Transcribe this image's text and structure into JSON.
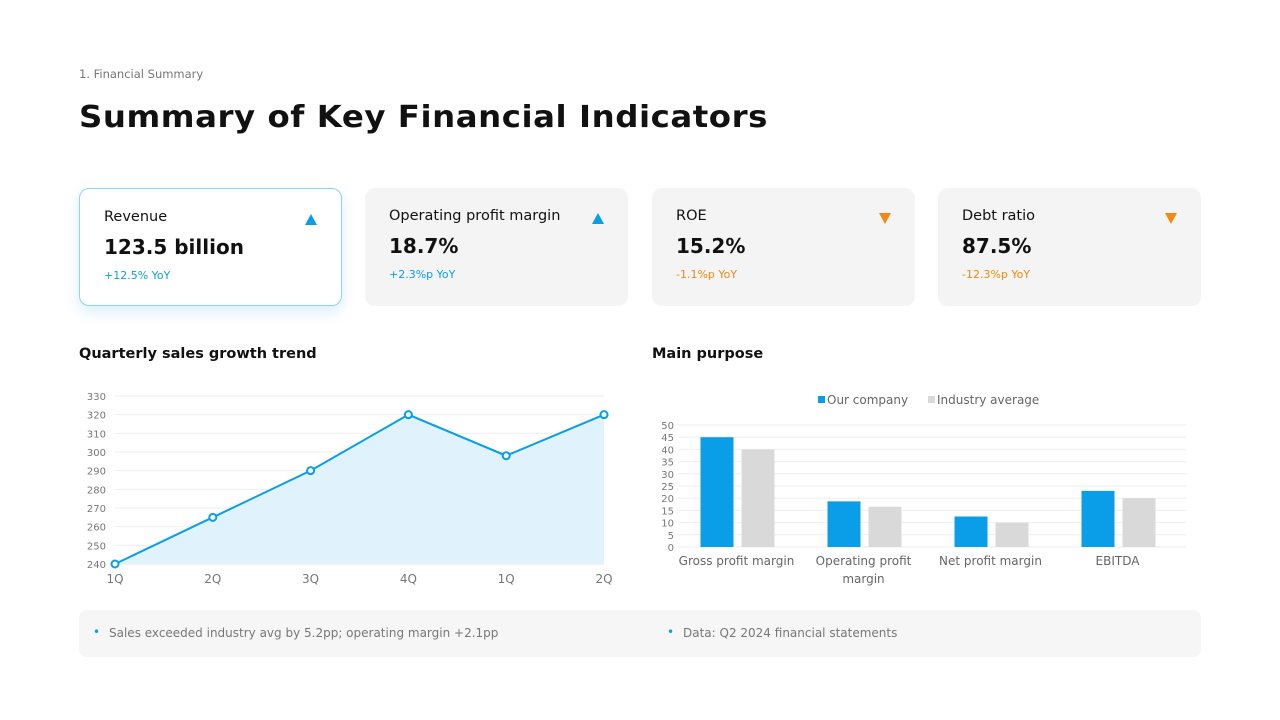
{
  "section": "1. Financial Summary",
  "title": "Summary of Key Financial Indicators",
  "colors": {
    "accent": "#0a9de8",
    "up": "#0a9de8",
    "down": "#f08a12",
    "industry": "#d9d9d9"
  },
  "cards": [
    {
      "label": "Revenue",
      "value": "123.5 billion",
      "yoy": "+12.5% YoY",
      "trend": "up"
    },
    {
      "label": "Operating profit margin",
      "value": "18.7%",
      "yoy": "+2.3%p YoY",
      "trend": "up"
    },
    {
      "label": "ROE",
      "value": "15.2%",
      "yoy": "-1.1%p YoY",
      "trend": "down"
    },
    {
      "label": "Debt ratio",
      "value": "87.5%",
      "yoy": "-12.3%p YoY",
      "trend": "down"
    }
  ],
  "chart_data": [
    {
      "type": "area",
      "title": "Quarterly sales growth trend",
      "categories": [
        "1Q",
        "2Q",
        "3Q",
        "4Q",
        "1Q",
        "2Q"
      ],
      "values": [
        240,
        265,
        290,
        320,
        298,
        320
      ],
      "ylim": [
        240,
        330
      ],
      "yticks": [
        240,
        250,
        260,
        270,
        280,
        290,
        300,
        310,
        320,
        330
      ],
      "grid": true
    },
    {
      "type": "bar",
      "title": "Main purpose",
      "categories": [
        "Gross profit margin",
        "Operating profit margin",
        "Net profit margin",
        "EBITDA"
      ],
      "series": [
        {
          "name": "Our company",
          "values": [
            45,
            18.7,
            12.5,
            23
          ]
        },
        {
          "name": "Industry average",
          "values": [
            40,
            16.5,
            10,
            20
          ]
        }
      ],
      "ylim": [
        0,
        50
      ],
      "yticks": [
        0,
        5,
        10,
        15,
        20,
        25,
        30,
        35,
        40,
        45,
        50
      ],
      "legend": "top",
      "grid": true
    }
  ],
  "footer": [
    "Sales exceeded industry avg by 5.2pp; operating margin +2.1pp",
    "Data: Q2 2024 financial statements"
  ]
}
